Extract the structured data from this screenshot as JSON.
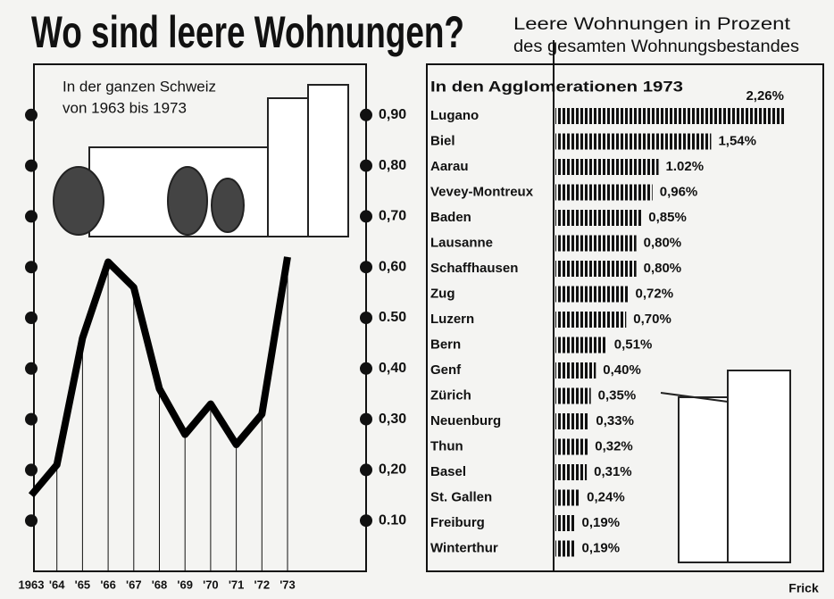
{
  "title": "Wo sind leere Wohnungen?",
  "subtitle": [
    "Leere Wohnungen in Prozent",
    "des gesamten Wohnungsbestandes"
  ],
  "credit": "Frick",
  "chart_data": [
    {
      "type": "line",
      "annotation": [
        "In der ganzen Schweiz",
        "von 1963 bis 1973"
      ],
      "categories": [
        "1963",
        "'64",
        "'65",
        "'66",
        "'67",
        "'68",
        "'69",
        "'70",
        "'71",
        "'72",
        "'73"
      ],
      "values": [
        0.15,
        0.21,
        0.46,
        0.61,
        0.56,
        0.36,
        0.27,
        0.33,
        0.25,
        0.31,
        0.62
      ],
      "color": "#000000",
      "ylim": [
        0,
        1
      ],
      "yticks": [
        {
          "value": 0.1,
          "label": "0.10"
        },
        {
          "value": 0.2,
          "label": "0,20"
        },
        {
          "value": 0.3,
          "label": "0,30"
        },
        {
          "value": 0.4,
          "label": "0,40"
        },
        {
          "value": 0.5,
          "label": "0.50"
        },
        {
          "value": 0.6,
          "label": "0,60"
        },
        {
          "value": 0.7,
          "label": "0,70"
        },
        {
          "value": 0.8,
          "label": "0,80"
        },
        {
          "value": 0.9,
          "label": "0,90"
        }
      ]
    },
    {
      "type": "bar",
      "orientation": "horizontal",
      "title": "In den Agglomerationen 1973",
      "categories": [
        "Lugano",
        "Biel",
        "Aarau",
        "Vevey-Montreux",
        "Baden",
        "Lausanne",
        "Schaffhausen",
        "Zug",
        "Luzern",
        "Bern",
        "Genf",
        "Zürich",
        "Neuenburg",
        "Thun",
        "Basel",
        "St. Gallen",
        "Freiburg",
        "Winterthur"
      ],
      "values": [
        2.26,
        1.54,
        1.02,
        0.96,
        0.85,
        0.8,
        0.8,
        0.72,
        0.7,
        0.51,
        0.4,
        0.35,
        0.33,
        0.32,
        0.31,
        0.24,
        0.19,
        0.19
      ],
      "value_labels": [
        "2,26%",
        "1,54%",
        "1.02%",
        "0,96%",
        "0,85%",
        "0,80%",
        "0,80%",
        "0,72%",
        "0,70%",
        "0,51%",
        "0,40%",
        "0,35%",
        "0,33%",
        "0,32%",
        "0,31%",
        "0,24%",
        "0,19%",
        "0,19%"
      ],
      "color": "#111111"
    }
  ]
}
